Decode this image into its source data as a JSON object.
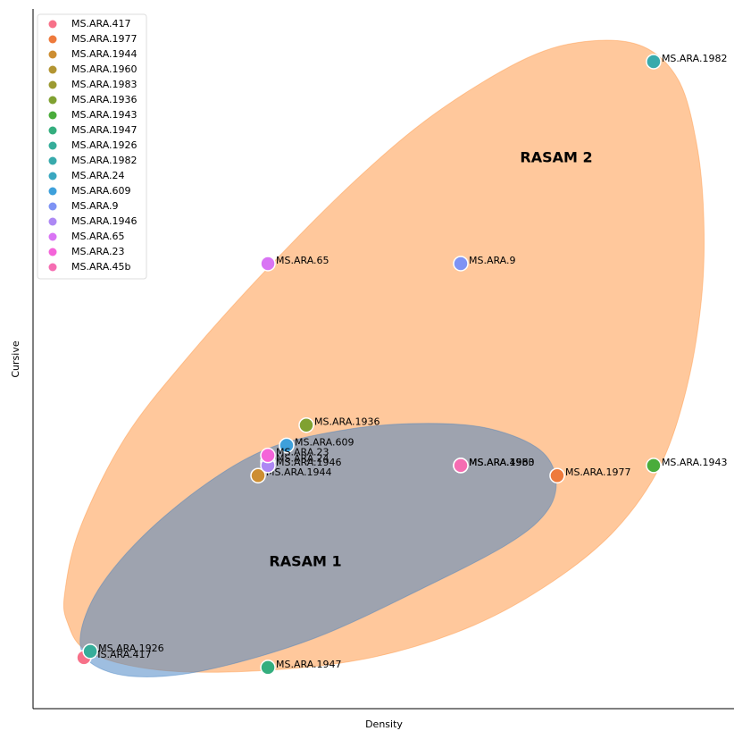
{
  "chart_data": {
    "type": "scatter",
    "x_label": "Density",
    "y_label": "Cursive",
    "xlim": [
      -0.218,
      3.417
    ],
    "ylim": [
      -0.204,
      3.261
    ],
    "legend": "upper left",
    "annotations": [
      "RASAM 1",
      "RASAM 2"
    ],
    "series": [
      {
        "name": "MS.ARA.417",
        "color": "#f77189",
        "x": [
          0.046
        ],
        "values": [
          0.049
        ]
      },
      {
        "name": "MS.ARA.1977",
        "color": "#ee7a3c",
        "x": [
          2.5
        ],
        "values": [
          0.95
        ]
      },
      {
        "name": "MS.ARA.1944",
        "color": "#cd8e32",
        "x": [
          0.949
        ],
        "values": [
          0.95
        ]
      },
      {
        "name": "MS.ARA.1960",
        "color": "#b39532",
        "x": [
          2.0
        ],
        "values": [
          1.0
        ]
      },
      {
        "name": "MS.ARA.1983",
        "color": "#9c9a31",
        "x": [
          2.0
        ],
        "values": [
          1.0
        ]
      },
      {
        "name": "MS.ARA.1936",
        "color": "#80a131",
        "x": [
          1.199
        ],
        "values": [
          1.2
        ]
      },
      {
        "name": "MS.ARA.1943",
        "color": "#4aac3b",
        "x": [
          3.0
        ],
        "values": [
          1.0
        ]
      },
      {
        "name": "MS.ARA.1947",
        "color": "#34ae7e",
        "x": [
          1.0
        ],
        "values": [
          0.0
        ]
      },
      {
        "name": "MS.ARA.1926",
        "color": "#36ad9a",
        "x": [
          0.079
        ],
        "values": [
          0.08
        ]
      },
      {
        "name": "MS.ARA.1982",
        "color": "#38aaac",
        "x": [
          3.0
        ],
        "values": [
          3.0
        ]
      },
      {
        "name": "MS.ARA.24",
        "color": "#3aa7c0",
        "x": [
          1.0
        ],
        "values": [
          1.02
        ]
      },
      {
        "name": "MS.ARA.609",
        "color": "#3ea0db",
        "x": [
          1.097
        ],
        "values": [
          1.1
        ]
      },
      {
        "name": "MS.ARA.9",
        "color": "#7e93f4",
        "x": [
          2.0
        ],
        "values": [
          2.0
        ]
      },
      {
        "name": "MS.ARA.1946",
        "color": "#ad88f4",
        "x": [
          1.0
        ],
        "values": [
          1.0
        ]
      },
      {
        "name": "MS.ARA.65",
        "color": "#d974f4",
        "x": [
          1.0
        ],
        "values": [
          2.0
        ]
      },
      {
        "name": "MS.ARA.23",
        "color": "#f464d9",
        "x": [
          1.0
        ],
        "values": [
          1.05
        ]
      },
      {
        "name": "MS.ARA.45b",
        "color": "#f56db2",
        "x": [
          2.0
        ],
        "values": [
          1.0
        ]
      }
    ]
  }
}
